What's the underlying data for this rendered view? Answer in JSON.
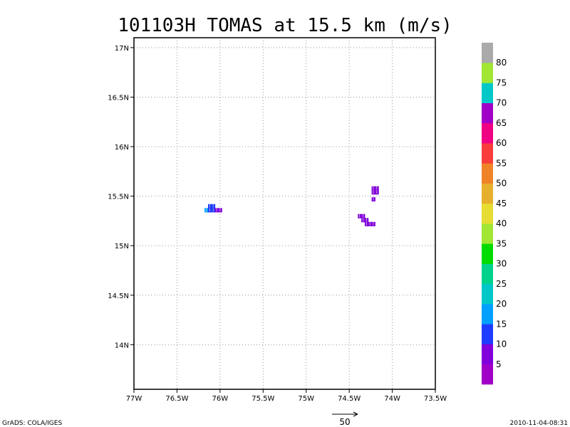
{
  "chart_data": {
    "type": "heatmap",
    "title": "101103H TOMAS at 15.5 km (m/s)",
    "x_ticks": [
      "77W",
      "76.5W",
      "76W",
      "75.5W",
      "75W",
      "74.5W",
      "74W",
      "73.5W"
    ],
    "y_ticks": [
      "14N",
      "14.5N",
      "15N",
      "15.5N",
      "16N",
      "16.5N",
      "17N"
    ],
    "xlim": [
      -77,
      -73.5
    ],
    "ylim": [
      13.55,
      17.1
    ],
    "grid": true,
    "colorbar": {
      "labels": [
        "5",
        "10",
        "15",
        "20",
        "25",
        "30",
        "35",
        "40",
        "45",
        "50",
        "55",
        "60",
        "65",
        "70",
        "75",
        "80"
      ],
      "colors": [
        "#a000c8",
        "#8200dc",
        "#1e3cff",
        "#00a0ff",
        "#00c8c8",
        "#00d28c",
        "#00dc00",
        "#a0e632",
        "#e6dc32",
        "#e6af2d",
        "#f08228",
        "#fa3c3c",
        "#f00082",
        "#a000c8",
        "#00c8c8",
        "#a0e632",
        "#aaaaaa"
      ]
    },
    "cells": [
      {
        "lon": -76.16,
        "lat": 15.36,
        "speed": 18
      },
      {
        "lon": -76.12,
        "lat": 15.36,
        "speed": 14
      },
      {
        "lon": -76.12,
        "lat": 15.4,
        "speed": 14
      },
      {
        "lon": -76.08,
        "lat": 15.36,
        "speed": 12
      },
      {
        "lon": -76.08,
        "lat": 15.4,
        "speed": 12
      },
      {
        "lon": -76.04,
        "lat": 15.36,
        "speed": 8
      },
      {
        "lon": -76.0,
        "lat": 15.36,
        "speed": 5
      },
      {
        "lon": -74.22,
        "lat": 15.58,
        "speed": 7
      },
      {
        "lon": -74.18,
        "lat": 15.58,
        "speed": 7
      },
      {
        "lon": -74.18,
        "lat": 15.54,
        "speed": 7
      },
      {
        "lon": -74.22,
        "lat": 15.54,
        "speed": 6
      },
      {
        "lon": -74.22,
        "lat": 15.47,
        "speed": 6
      },
      {
        "lon": -74.38,
        "lat": 15.3,
        "speed": 7
      },
      {
        "lon": -74.34,
        "lat": 15.3,
        "speed": 7
      },
      {
        "lon": -74.34,
        "lat": 15.26,
        "speed": 7
      },
      {
        "lon": -74.3,
        "lat": 15.26,
        "speed": 6
      },
      {
        "lon": -74.3,
        "lat": 15.22,
        "speed": 6
      },
      {
        "lon": -74.26,
        "lat": 15.22,
        "speed": 6
      },
      {
        "lon": -74.22,
        "lat": 15.22,
        "speed": 5
      }
    ],
    "vector_reference": "50"
  },
  "footer": {
    "left": "GrADS: COLA/IGES",
    "right": "2010-11-04-08:31"
  }
}
